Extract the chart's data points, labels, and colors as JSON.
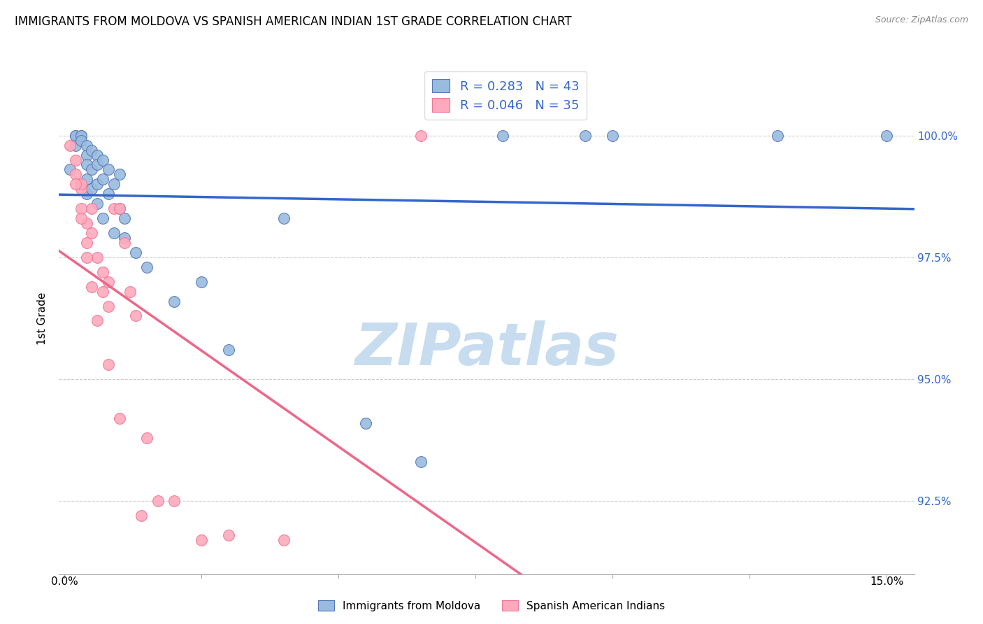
{
  "title": "IMMIGRANTS FROM MOLDOVA VS SPANISH AMERICAN INDIAN 1ST GRADE CORRELATION CHART",
  "source": "Source: ZipAtlas.com",
  "ylabel": "1st Grade",
  "ytick_values": [
    100.0,
    97.5,
    95.0,
    92.5
  ],
  "ymin": 91.0,
  "ymax": 101.5,
  "xmin": -0.001,
  "xmax": 0.155,
  "blue_color": "#99BBDD",
  "pink_color": "#FFAABC",
  "blue_edge_color": "#5577BB",
  "pink_edge_color": "#EE7799",
  "blue_line_color": "#3366CC",
  "pink_line_color": "#EE6688",
  "ytick_color": "#3366CC",
  "watermark_color": "#C8DCF0",
  "blue_scatter_x": [
    0.001,
    0.002,
    0.002,
    0.002,
    0.003,
    0.003,
    0.003,
    0.004,
    0.004,
    0.004,
    0.004,
    0.004,
    0.005,
    0.005,
    0.005,
    0.006,
    0.006,
    0.006,
    0.006,
    0.007,
    0.007,
    0.007,
    0.008,
    0.008,
    0.009,
    0.009,
    0.01,
    0.01,
    0.011,
    0.011,
    0.013,
    0.015,
    0.02,
    0.025,
    0.03,
    0.04,
    0.055,
    0.065,
    0.08,
    0.095,
    0.1,
    0.13,
    0.15
  ],
  "blue_scatter_y": [
    99.3,
    100.0,
    100.0,
    99.8,
    100.0,
    100.0,
    99.9,
    99.8,
    99.6,
    99.4,
    99.1,
    98.8,
    99.7,
    99.3,
    98.9,
    99.6,
    99.4,
    99.0,
    98.6,
    99.5,
    99.1,
    98.3,
    99.3,
    98.8,
    99.0,
    98.0,
    99.2,
    98.5,
    98.3,
    97.9,
    97.6,
    97.3,
    96.6,
    97.0,
    95.6,
    98.3,
    94.1,
    93.3,
    100.0,
    100.0,
    100.0,
    100.0,
    100.0
  ],
  "pink_scatter_x": [
    0.001,
    0.002,
    0.002,
    0.003,
    0.003,
    0.003,
    0.004,
    0.004,
    0.005,
    0.005,
    0.006,
    0.007,
    0.007,
    0.008,
    0.008,
    0.009,
    0.01,
    0.011,
    0.012,
    0.013,
    0.015,
    0.017,
    0.02,
    0.025,
    0.03,
    0.065,
    0.002,
    0.003,
    0.004,
    0.005,
    0.006,
    0.008,
    0.01,
    0.014,
    0.04
  ],
  "pink_scatter_y": [
    99.8,
    99.5,
    99.2,
    98.9,
    98.5,
    99.0,
    98.2,
    97.8,
    98.5,
    98.0,
    97.5,
    97.2,
    96.8,
    97.0,
    96.5,
    98.5,
    98.5,
    97.8,
    96.8,
    96.3,
    93.8,
    92.5,
    92.5,
    91.7,
    91.8,
    100.0,
    99.0,
    98.3,
    97.5,
    96.9,
    96.2,
    95.3,
    94.2,
    92.2,
    91.7
  ]
}
